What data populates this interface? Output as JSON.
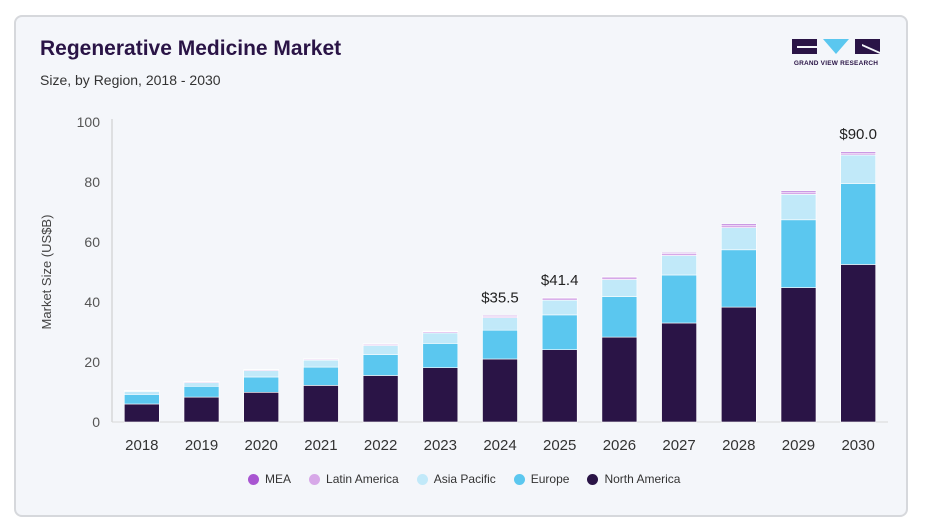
{
  "header": {
    "title": "Regenerative Medicine Market",
    "subtitle": "Size, by Region, 2018 - 2030"
  },
  "logo": {
    "text": "GRAND VIEW RESEARCH",
    "color": "#2a1446",
    "accent": "#5bc7ef"
  },
  "chart_data": {
    "type": "bar",
    "stacked": true,
    "title": "Regenerative Medicine Market",
    "subtitle": "Size, by Region, 2018 - 2030",
    "xlabel": "",
    "ylabel": "Market Size (US$B)",
    "ylim": [
      0,
      100
    ],
    "yticks": [
      0,
      20,
      40,
      60,
      80,
      100
    ],
    "grid": false,
    "legend_position": "bottom",
    "categories": [
      "2018",
      "2019",
      "2020",
      "2021",
      "2022",
      "2023",
      "2024",
      "2025",
      "2026",
      "2027",
      "2028",
      "2029",
      "2030"
    ],
    "series": [
      {
        "name": "North America",
        "color": "#2a1446",
        "values": [
          6.0,
          8.3,
          9.9,
          12.2,
          15.5,
          18.1,
          21.0,
          24.1,
          28.3,
          33.0,
          38.3,
          44.8,
          52.5
        ]
      },
      {
        "name": "Europe",
        "color": "#5bc7ef",
        "values": [
          3.2,
          3.6,
          5.1,
          6.1,
          7.0,
          8.1,
          9.6,
          11.6,
          13.5,
          16.0,
          19.1,
          22.6,
          27.0
        ]
      },
      {
        "name": "Asia Pacific",
        "color": "#c1e9f9",
        "values": [
          1.0,
          1.2,
          2.1,
          2.3,
          3.0,
          3.5,
          4.2,
          4.9,
          5.7,
          6.5,
          7.4,
          8.5,
          9.5
        ]
      },
      {
        "name": "Latin America",
        "color": "#d7a8e8",
        "values": [
          0.2,
          0.3,
          0.3,
          0.3,
          0.4,
          0.4,
          0.4,
          0.5,
          0.6,
          0.7,
          0.8,
          0.7,
          0.6
        ]
      },
      {
        "name": "MEA",
        "color": "#a855d1",
        "values": [
          0.1,
          0.1,
          0.1,
          0.2,
          0.2,
          0.2,
          0.3,
          0.3,
          0.3,
          0.3,
          0.4,
          0.4,
          0.4
        ]
      }
    ],
    "legend_order": [
      "MEA",
      "Latin America",
      "Asia Pacific",
      "Europe",
      "North America"
    ],
    "annotations": [
      {
        "category": "2024",
        "label": "$35.5",
        "value": 35.5
      },
      {
        "category": "2025",
        "label": "$41.4",
        "value": 41.4
      },
      {
        "category": "2030",
        "label": "$90.0",
        "value": 90.0
      }
    ]
  }
}
